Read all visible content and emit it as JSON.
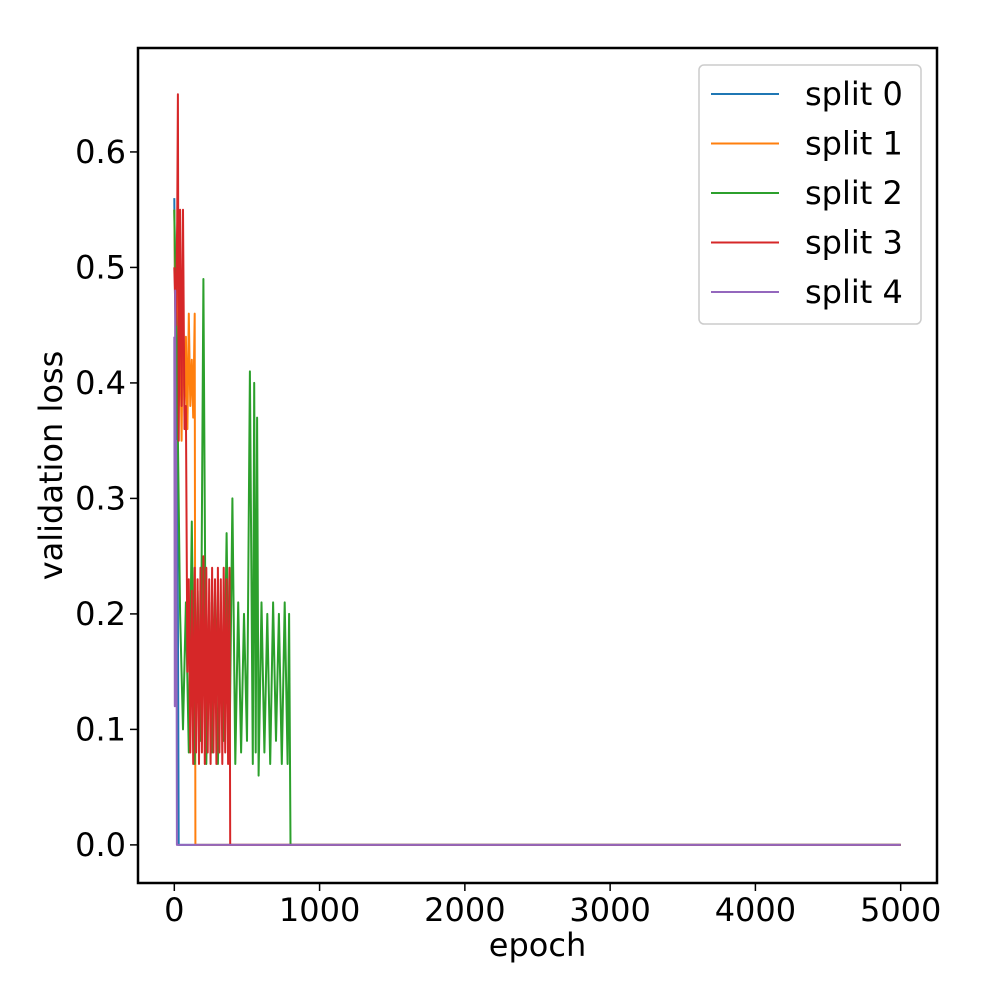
{
  "chart_data": {
    "type": "line",
    "title": "",
    "xlabel": "epoch",
    "ylabel": "validation loss",
    "xlim": [
      -250,
      5250
    ],
    "ylim": [
      -0.033,
      0.69
    ],
    "xticks": [
      0,
      1000,
      2000,
      3000,
      4000,
      5000
    ],
    "xtick_labels": [
      "0",
      "1000",
      "2000",
      "3000",
      "4000",
      "5000"
    ],
    "yticks": [
      0.0,
      0.1,
      0.2,
      0.3,
      0.4,
      0.5,
      0.6
    ],
    "ytick_labels": [
      "0.0",
      "0.1",
      "0.2",
      "0.3",
      "0.4",
      "0.5",
      "0.6"
    ],
    "grid": false,
    "legend_position": "top-right",
    "series": [
      {
        "name": "split 0",
        "color": "#1f77b4",
        "x": [
          0,
          5,
          10,
          15,
          20,
          25,
          30,
          40,
          5000
        ],
        "y": [
          0.56,
          0.48,
          0.44,
          0.38,
          0.3,
          0.2,
          0.0,
          0.0,
          0.0
        ]
      },
      {
        "name": "split 1",
        "color": "#ff7f0e",
        "x": [
          0,
          10,
          20,
          30,
          40,
          50,
          60,
          70,
          80,
          90,
          100,
          110,
          120,
          130,
          140,
          145,
          150,
          5000
        ],
        "y": [
          0.55,
          0.42,
          0.5,
          0.38,
          0.45,
          0.35,
          0.48,
          0.37,
          0.44,
          0.36,
          0.46,
          0.38,
          0.42,
          0.37,
          0.46,
          0.0,
          0.0,
          0.0
        ]
      },
      {
        "name": "split 2",
        "color": "#2ca02c",
        "x": [
          0,
          20,
          40,
          60,
          80,
          100,
          120,
          140,
          160,
          180,
          200,
          220,
          240,
          260,
          280,
          300,
          320,
          340,
          360,
          380,
          400,
          420,
          440,
          460,
          480,
          500,
          520,
          540,
          550,
          560,
          570,
          580,
          600,
          620,
          640,
          660,
          680,
          700,
          720,
          740,
          760,
          780,
          790,
          800,
          5000
        ],
        "y": [
          0.55,
          0.4,
          0.2,
          0.1,
          0.21,
          0.08,
          0.28,
          0.07,
          0.22,
          0.09,
          0.49,
          0.07,
          0.21,
          0.08,
          0.22,
          0.07,
          0.2,
          0.09,
          0.27,
          0.08,
          0.3,
          0.07,
          0.21,
          0.08,
          0.2,
          0.09,
          0.41,
          0.07,
          0.4,
          0.08,
          0.37,
          0.06,
          0.21,
          0.08,
          0.2,
          0.07,
          0.21,
          0.09,
          0.2,
          0.07,
          0.21,
          0.07,
          0.2,
          0.0,
          0.0
        ]
      },
      {
        "name": "split 3",
        "color": "#d62728",
        "x": [
          0,
          10,
          20,
          25,
          30,
          40,
          50,
          60,
          70,
          80,
          90,
          100,
          110,
          120,
          130,
          140,
          150,
          160,
          170,
          180,
          190,
          200,
          210,
          220,
          230,
          240,
          250,
          260,
          270,
          280,
          290,
          300,
          310,
          320,
          330,
          340,
          350,
          360,
          370,
          380,
          385,
          390,
          5000
        ],
        "y": [
          0.5,
          0.45,
          0.54,
          0.65,
          0.35,
          0.55,
          0.38,
          0.55,
          0.36,
          0.38,
          0.15,
          0.23,
          0.08,
          0.22,
          0.07,
          0.24,
          0.08,
          0.23,
          0.07,
          0.24,
          0.08,
          0.25,
          0.07,
          0.24,
          0.08,
          0.23,
          0.07,
          0.24,
          0.08,
          0.23,
          0.07,
          0.24,
          0.08,
          0.23,
          0.07,
          0.24,
          0.08,
          0.23,
          0.07,
          0.24,
          0.0,
          0.0,
          0.0
        ]
      },
      {
        "name": "split 4",
        "color": "#9467bd",
        "x": [
          0,
          3,
          6,
          9,
          12,
          15,
          18,
          20,
          5000
        ],
        "y": [
          0.44,
          0.12,
          0.48,
          0.25,
          0.35,
          0.2,
          0.0,
          0.0,
          0.0
        ]
      }
    ]
  }
}
